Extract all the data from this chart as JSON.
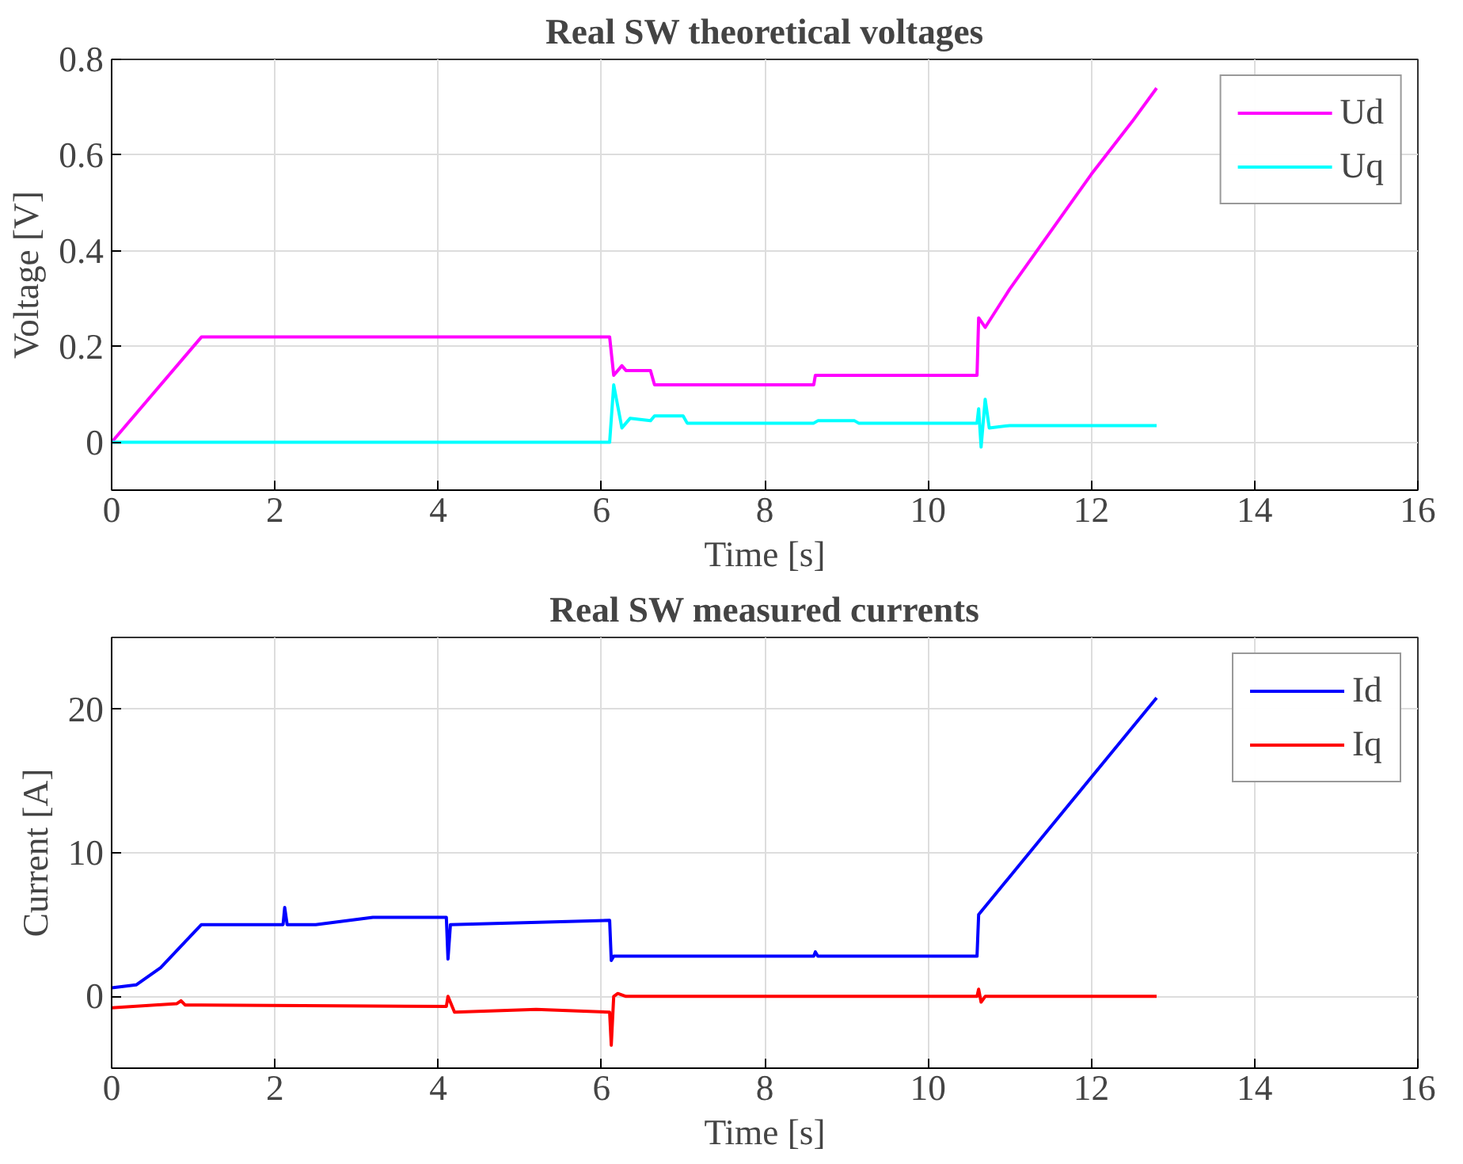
{
  "chart_data": [
    {
      "type": "line",
      "title": "Real SW theoretical voltages",
      "xlabel": "Time [s]",
      "ylabel": "Voltage [V]",
      "xlim": [
        0,
        16
      ],
      "ylim": [
        -0.1,
        0.8
      ],
      "xticks": [
        0,
        2,
        4,
        6,
        8,
        10,
        12,
        14,
        16
      ],
      "yticks": [
        0,
        0.2,
        0.4,
        0.6,
        0.8
      ],
      "grid": true,
      "legend": "top right",
      "series": [
        {
          "name": "Ud",
          "color": "#ff00ff",
          "x": [
            0,
            1.1,
            6.1,
            6.15,
            6.25,
            6.3,
            6.6,
            6.65,
            8.6,
            8.62,
            10.6,
            10.62,
            10.7,
            11.0,
            11.5,
            12,
            12.5,
            12.8
          ],
          "values": [
            0,
            0.22,
            0.22,
            0.14,
            0.16,
            0.15,
            0.15,
            0.12,
            0.12,
            0.14,
            0.14,
            0.26,
            0.24,
            0.32,
            0.44,
            0.56,
            0.67,
            0.74
          ]
        },
        {
          "name": "Uq",
          "color": "#00ffff",
          "x": [
            0,
            6.1,
            6.15,
            6.25,
            6.35,
            6.6,
            6.65,
            7.0,
            7.05,
            8.6,
            8.65,
            9.1,
            9.15,
            10.6,
            10.62,
            10.65,
            10.7,
            10.75,
            11,
            12.8
          ],
          "values": [
            0,
            0,
            0.12,
            0.03,
            0.05,
            0.045,
            0.055,
            0.055,
            0.04,
            0.04,
            0.045,
            0.045,
            0.04,
            0.04,
            0.07,
            -0.01,
            0.09,
            0.03,
            0.035,
            0.035
          ]
        }
      ]
    },
    {
      "type": "line",
      "title": "Real SW measured currents",
      "xlabel": "Time [s]",
      "ylabel": "Current [A]",
      "xlim": [
        0,
        16
      ],
      "ylim": [
        -5,
        25
      ],
      "xticks": [
        0,
        2,
        4,
        6,
        8,
        10,
        12,
        14,
        16
      ],
      "yticks": [
        0,
        10,
        20
      ],
      "grid": true,
      "legend": "top right",
      "series": [
        {
          "name": "Id",
          "color": "#0000ff",
          "x": [
            0,
            0.3,
            0.6,
            0.9,
            1.1,
            2.1,
            2.12,
            2.15,
            2.5,
            3.2,
            4.1,
            4.12,
            4.15,
            6.1,
            6.12,
            6.15,
            8.6,
            8.62,
            8.65,
            10.6,
            10.62,
            12.8
          ],
          "values": [
            0.6,
            0.8,
            2,
            3.8,
            5,
            5,
            6.2,
            5,
            5,
            5.5,
            5.5,
            2.6,
            5,
            5.3,
            2.5,
            2.8,
            2.8,
            3.1,
            2.8,
            2.8,
            5.7,
            20.8
          ]
        },
        {
          "name": "Iq",
          "color": "#ff0000",
          "x": [
            0,
            0.8,
            0.85,
            0.9,
            4.1,
            4.12,
            4.2,
            5.2,
            6.1,
            6.12,
            6.15,
            6.2,
            6.3,
            10.6,
            10.62,
            10.65,
            10.7,
            12.8
          ],
          "values": [
            -0.8,
            -0.5,
            -0.3,
            -0.6,
            -0.7,
            0,
            -1.1,
            -0.9,
            -1.1,
            -3.4,
            0,
            0.2,
            0,
            0,
            0.5,
            -0.4,
            0,
            0
          ]
        }
      ]
    }
  ]
}
